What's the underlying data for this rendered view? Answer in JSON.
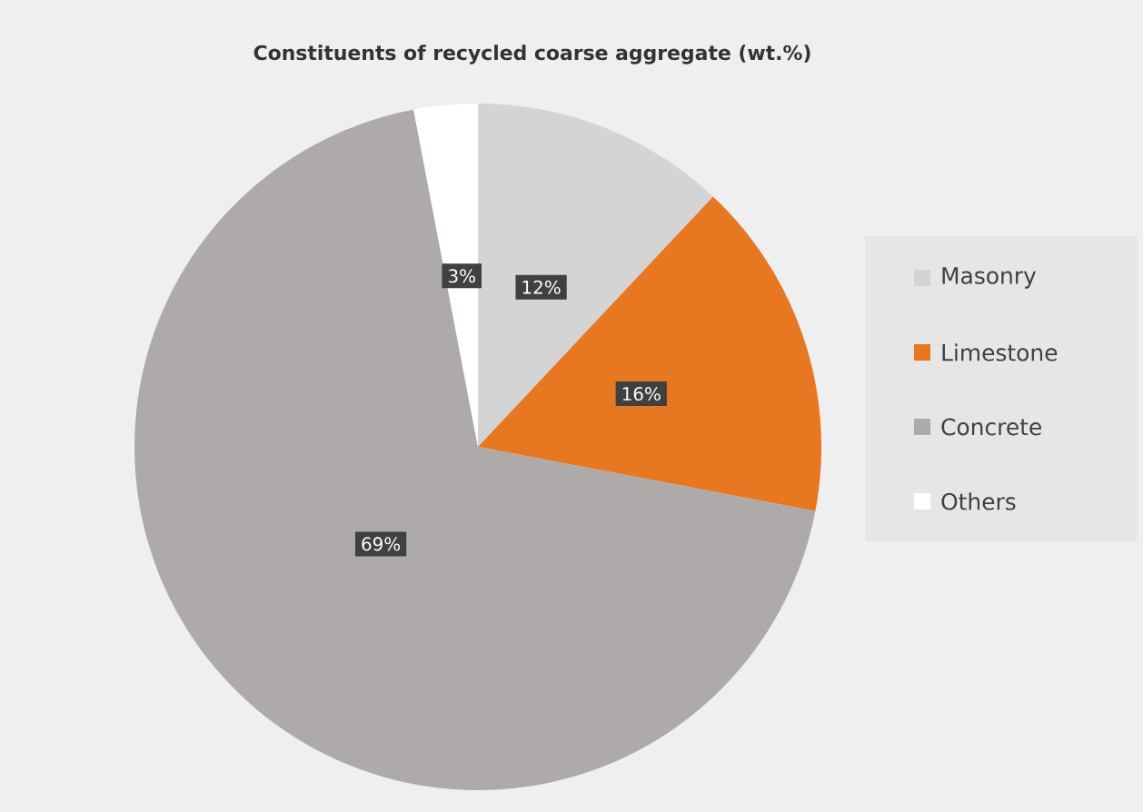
{
  "chart_data": {
    "type": "pie",
    "title": "Constituents of recycled coarse aggregate (wt.%)",
    "categories": [
      "Masonry",
      "Limestone",
      "Concrete",
      "Others"
    ],
    "values": [
      12,
      16,
      69,
      3
    ],
    "value_labels": [
      "12%",
      "16%",
      "69%",
      "3%"
    ],
    "colors": [
      "#d4d4d4",
      "#e87722",
      "#adaaa9",
      "#ffffff"
    ],
    "legend": "right"
  }
}
